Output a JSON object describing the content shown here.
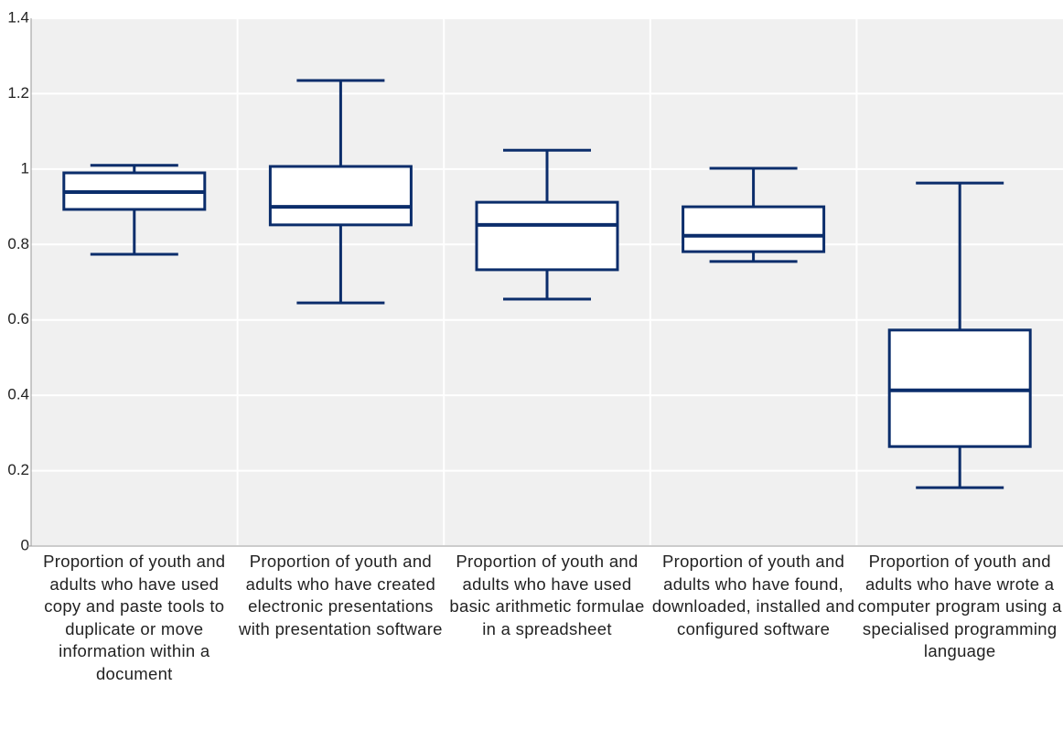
{
  "chart_data": {
    "type": "box",
    "categories": [
      "Proportion of youth and adults who have used copy and paste tools to duplicate or move information within a document",
      "Proportion of youth and adults who have created electronic presentations with presentation software",
      "Proportion of youth and adults who have used basic arithmetic formulae in a spreadsheet",
      "Proportion of youth and adults who have found, downloaded, installed and configured software",
      "Proportion of youth and adults who have wrote a computer program using a specialised programming language"
    ],
    "boxes": [
      {
        "whislo": 0.774,
        "q1": 0.893,
        "med": 0.939,
        "q3": 0.99,
        "whishi": 1.01
      },
      {
        "whislo": 0.645,
        "q1": 0.852,
        "med": 0.9,
        "q3": 1.007,
        "whishi": 1.235
      },
      {
        "whislo": 0.655,
        "q1": 0.733,
        "med": 0.852,
        "q3": 0.912,
        "whishi": 1.05
      },
      {
        "whislo": 0.755,
        "q1": 0.781,
        "med": 0.823,
        "q3": 0.9,
        "whishi": 1.002
      },
      {
        "whislo": 0.155,
        "q1": 0.264,
        "med": 0.413,
        "q3": 0.573,
        "whishi": 0.963
      }
    ],
    "color": "#0b2d6b",
    "ylim": [
      0,
      1.4
    ],
    "yticks": [
      0,
      0.2,
      0.4,
      0.6,
      0.8,
      1,
      1.2,
      1.4
    ],
    "grid": true
  }
}
